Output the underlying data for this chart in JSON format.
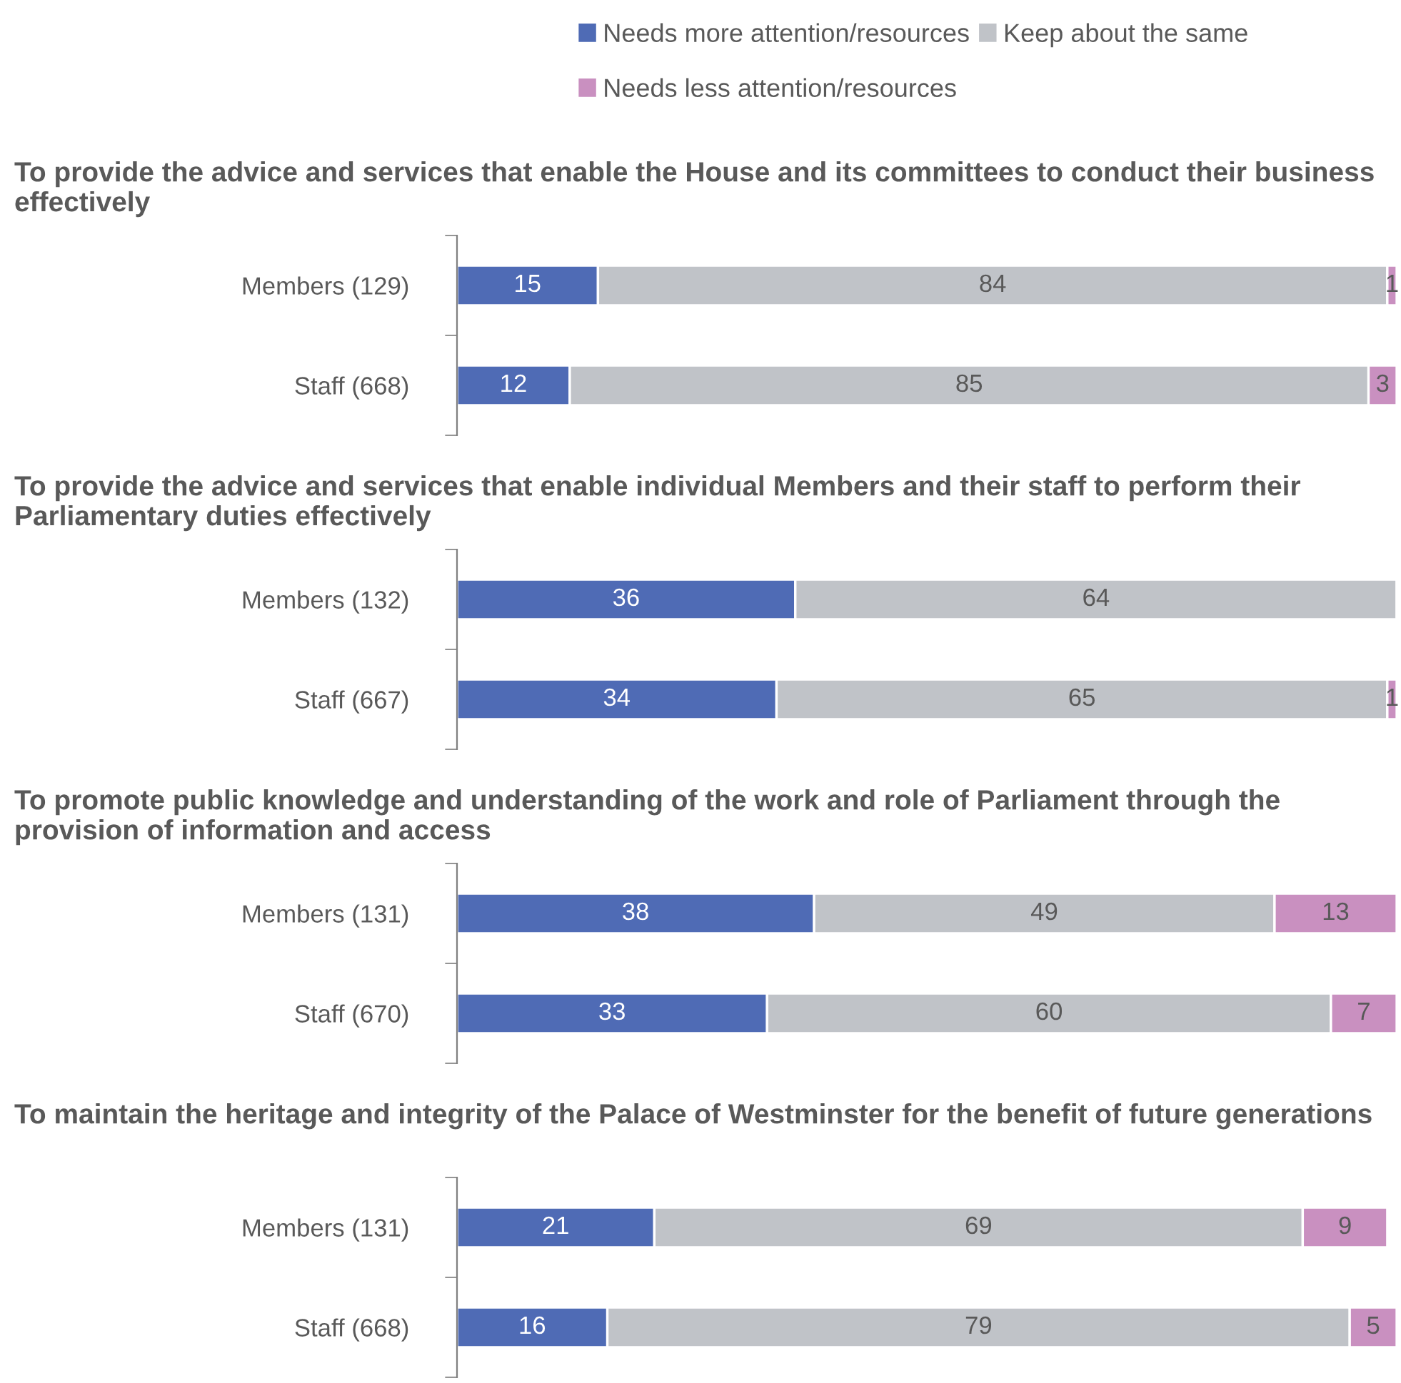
{
  "chart_data": [
    {
      "type": "bar",
      "orientation": "horizontal",
      "stacked": true,
      "data_labels": true,
      "legend": "top",
      "grid": false,
      "title": "To provide the advice and services that enable the House and its committees to conduct their business effectively",
      "categories": [
        "Members (129)",
        "Staff (668)"
      ],
      "series": [
        {
          "name": "Needs more attention/resources",
          "color": "#4f6bb5",
          "values": [
            15,
            12
          ]
        },
        {
          "name": "Keep about the same",
          "color": "#c0c3c8",
          "values": [
            84,
            85
          ]
        },
        {
          "name": "Needs less attention/resources",
          "color": "#c990c0",
          "values": [
            1,
            3
          ]
        }
      ]
    },
    {
      "type": "bar",
      "orientation": "horizontal",
      "stacked": true,
      "data_labels": true,
      "grid": false,
      "title": "To provide the advice and services that enable individual Members and their staff to perform their Parliamentary duties effectively",
      "categories": [
        "Members (132)",
        "Staff (667)"
      ],
      "series": [
        {
          "color": "#4f6bb5",
          "values": [
            36,
            34
          ]
        },
        {
          "color": "#c0c3c8",
          "values": [
            64,
            65
          ]
        },
        {
          "color": "#c990c0",
          "values": [
            null,
            1
          ]
        }
      ]
    },
    {
      "type": "bar",
      "orientation": "horizontal",
      "stacked": true,
      "data_labels": true,
      "grid": false,
      "title": "To promote public knowledge and understanding of the work and role of Parliament through the provision of information and access",
      "categories": [
        "Members (131)",
        "Staff (670)"
      ],
      "series": [
        {
          "color": "#4f6bb5",
          "values": [
            38,
            33
          ]
        },
        {
          "color": "#c0c3c8",
          "values": [
            49,
            60
          ]
        },
        {
          "color": "#c990c0",
          "values": [
            13,
            7
          ]
        }
      ]
    },
    {
      "type": "bar",
      "orientation": "horizontal",
      "stacked": true,
      "data_labels": true,
      "grid": false,
      "title": "To maintain the heritage and integrity of the Palace of Westminster for the benefit of future generations",
      "categories": [
        "Members (131)",
        "Staff (668)"
      ],
      "series": [
        {
          "color": "#4f6bb5",
          "values": [
            21,
            16
          ]
        },
        {
          "color": "#c0c3c8",
          "values": [
            69,
            79
          ]
        },
        {
          "color": "#c990c0",
          "values": [
            9,
            5
          ]
        }
      ]
    }
  ]
}
